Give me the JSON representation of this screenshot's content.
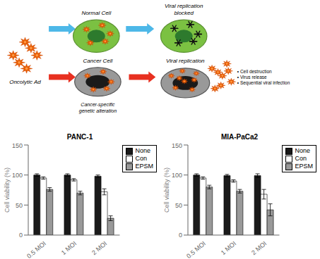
{
  "chart_data": [
    {
      "type": "diagram",
      "annotations": [
        "Oncolytic Ad",
        "Normal Cell",
        "Viral replication\nblocked",
        "Cancer Cell",
        "Viral replication",
        "Cancer-specific\ngenetic alteration",
        "• Cell destruction\n• Virus release\n• Sequential viral infection"
      ]
    },
    {
      "type": "bar",
      "title": "PANC-1",
      "ylabel": "Cell viability (%)",
      "categories": [
        "0.5 MOI",
        "1 MOI",
        "2 MOI"
      ],
      "series": [
        {
          "name": "None",
          "color": "#1a1a1a",
          "values": [
            100,
            100,
            98
          ],
          "errors": [
            2,
            2,
            2
          ]
        },
        {
          "name": "Con",
          "color": "#ffffff",
          "values": [
            95,
            92,
            72
          ],
          "errors": [
            2,
            2,
            5
          ]
        },
        {
          "name": "EPSM",
          "color": "#999999",
          "values": [
            76,
            70,
            28
          ],
          "errors": [
            3,
            3,
            4
          ]
        }
      ],
      "ylim": [
        0,
        150
      ],
      "yticks": [
        0,
        50,
        100,
        150
      ],
      "legend": "upper right"
    },
    {
      "type": "bar",
      "title": "MIA-PaCa2",
      "ylabel": "Cell viability (%)",
      "categories": [
        "0.5 MOI",
        "1 MOI",
        "2 MOI"
      ],
      "series": [
        {
          "name": "None",
          "color": "#1a1a1a",
          "values": [
            100,
            99,
            99
          ],
          "errors": [
            2,
            2,
            3
          ]
        },
        {
          "name": "Con",
          "color": "#ffffff",
          "values": [
            95,
            90,
            68
          ],
          "errors": [
            2,
            2,
            8
          ]
        },
        {
          "name": "EPSM",
          "color": "#999999",
          "values": [
            80,
            73,
            42
          ],
          "errors": [
            3,
            3,
            10
          ]
        }
      ],
      "ylim": [
        0,
        150
      ],
      "yticks": [
        0,
        50,
        100,
        150
      ],
      "legend": "upper right"
    }
  ]
}
